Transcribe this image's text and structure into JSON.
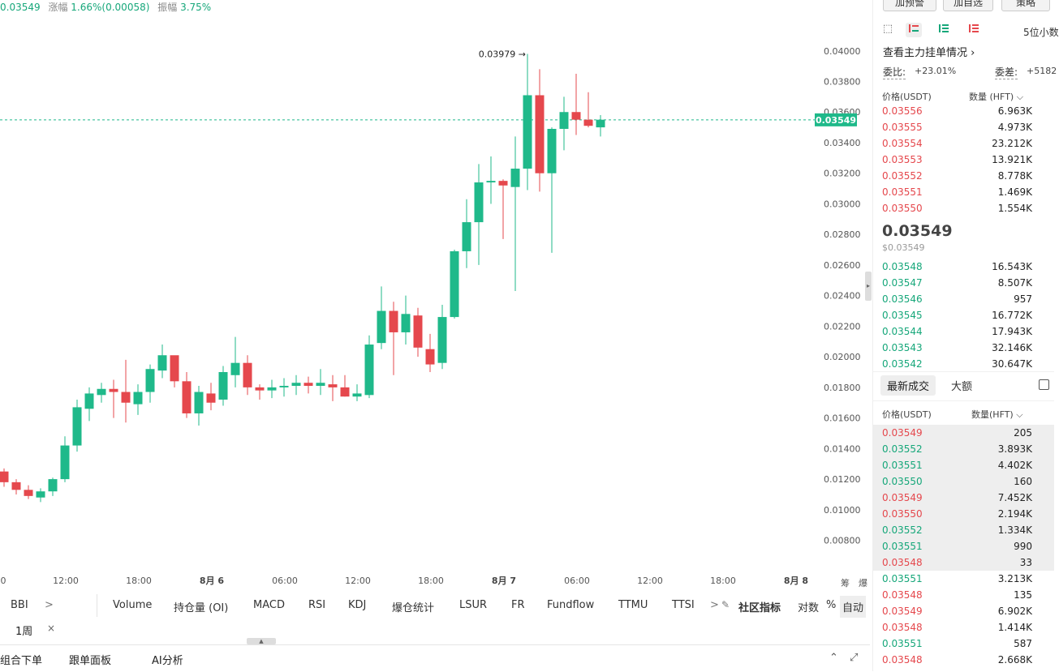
{
  "top_stats": {
    "price": "0.03549",
    "change_label": "涨幅",
    "change_value": "1.66%(0.00058)",
    "amplitude_label": "振幅",
    "amplitude_value": "3.75%"
  },
  "chart": {
    "y_ticks": [
      "0.04000",
      "0.03800",
      "0.03600",
      "0.03400",
      "0.03200",
      "0.03000",
      "0.02800",
      "0.02600",
      "0.02400",
      "0.02200",
      "0.02000",
      "0.01800",
      "0.01600",
      "0.01400",
      "0.01200",
      "0.01000",
      "0.00800"
    ],
    "x_ticks": [
      {
        "label": "0",
        "bold": false
      },
      {
        "label": "12:00",
        "bold": false
      },
      {
        "label": "18:00",
        "bold": false
      },
      {
        "label": "8月 6",
        "bold": true
      },
      {
        "label": "06:00",
        "bold": false
      },
      {
        "label": "12:00",
        "bold": false
      },
      {
        "label": "18:00",
        "bold": false
      },
      {
        "label": "8月 7",
        "bold": true
      },
      {
        "label": "06:00",
        "bold": false
      },
      {
        "label": "12:00",
        "bold": false
      },
      {
        "label": "18:00",
        "bold": false
      },
      {
        "label": "8月 8",
        "bold": true
      }
    ],
    "side_labels": [
      "筹",
      "爆"
    ],
    "current_price_label": "0.03549",
    "high_annotation": "0.03979 →",
    "colors": {
      "up": "#1fb98a",
      "down": "#e5484d",
      "grid": "#f2f2f2"
    }
  },
  "chart_data": {
    "type": "candlestick",
    "ylim": [
      0.0075,
      0.0411
    ],
    "current_price": 0.03549,
    "candles": [
      [
        0.0125,
        0.0127,
        0.0115,
        0.0118
      ],
      [
        0.0118,
        0.012,
        0.011,
        0.0113
      ],
      [
        0.0113,
        0.0116,
        0.0107,
        0.0109
      ],
      [
        0.0108,
        0.0114,
        0.0105,
        0.0112
      ],
      [
        0.0112,
        0.0121,
        0.0109,
        0.012
      ],
      [
        0.012,
        0.0148,
        0.0118,
        0.0142
      ],
      [
        0.0142,
        0.0172,
        0.0138,
        0.0167
      ],
      [
        0.0166,
        0.018,
        0.0158,
        0.0176
      ],
      [
        0.0175,
        0.0183,
        0.017,
        0.0179
      ],
      [
        0.0179,
        0.0185,
        0.016,
        0.0177
      ],
      [
        0.0177,
        0.0198,
        0.0157,
        0.017
      ],
      [
        0.0169,
        0.0182,
        0.0162,
        0.0177
      ],
      [
        0.0177,
        0.0195,
        0.017,
        0.0192
      ],
      [
        0.0191,
        0.0208,
        0.0186,
        0.0201
      ],
      [
        0.0201,
        0.0198,
        0.018,
        0.0184
      ],
      [
        0.0184,
        0.019,
        0.016,
        0.0163
      ],
      [
        0.0163,
        0.0181,
        0.0155,
        0.0177
      ],
      [
        0.0176,
        0.0183,
        0.0165,
        0.017
      ],
      [
        0.0172,
        0.0194,
        0.0168,
        0.019
      ],
      [
        0.0188,
        0.0213,
        0.018,
        0.0196
      ],
      [
        0.0196,
        0.0201,
        0.0175,
        0.018
      ],
      [
        0.018,
        0.0182,
        0.0172,
        0.0178
      ],
      [
        0.0178,
        0.0185,
        0.0173,
        0.018
      ],
      [
        0.018,
        0.0186,
        0.0174,
        0.0181
      ],
      [
        0.0181,
        0.0188,
        0.0175,
        0.0183
      ],
      [
        0.0183,
        0.0187,
        0.0176,
        0.0181
      ],
      [
        0.0181,
        0.0192,
        0.0175,
        0.0183
      ],
      [
        0.0182,
        0.0188,
        0.0171,
        0.018
      ],
      [
        0.018,
        0.0188,
        0.0174,
        0.0174
      ],
      [
        0.0174,
        0.0182,
        0.0171,
        0.0176
      ],
      [
        0.0175,
        0.0214,
        0.0173,
        0.0208
      ],
      [
        0.0209,
        0.0246,
        0.0205,
        0.023
      ],
      [
        0.023,
        0.0236,
        0.0188,
        0.0216
      ],
      [
        0.0216,
        0.024,
        0.0208,
        0.0228
      ],
      [
        0.0227,
        0.0232,
        0.02,
        0.0206
      ],
      [
        0.0205,
        0.0215,
        0.019,
        0.0195
      ],
      [
        0.0196,
        0.0234,
        0.0192,
        0.0226
      ],
      [
        0.0226,
        0.027,
        0.0225,
        0.0269
      ],
      [
        0.0269,
        0.0303,
        0.0258,
        0.0288
      ],
      [
        0.0288,
        0.0326,
        0.026,
        0.0314
      ],
      [
        0.0314,
        0.0331,
        0.03,
        0.0315
      ],
      [
        0.0315,
        0.0316,
        0.0277,
        0.0312
      ],
      [
        0.0311,
        0.0344,
        0.0243,
        0.0323
      ],
      [
        0.0323,
        0.0398,
        0.0309,
        0.0371
      ],
      [
        0.0371,
        0.0388,
        0.0308,
        0.032
      ],
      [
        0.032,
        0.035,
        0.0268,
        0.0349
      ],
      [
        0.0349,
        0.037,
        0.0335,
        0.036
      ],
      [
        0.036,
        0.0385,
        0.0345,
        0.0355
      ],
      [
        0.0355,
        0.0373,
        0.035,
        0.0351
      ],
      [
        0.035,
        0.0358,
        0.0344,
        0.0355
      ]
    ]
  },
  "indicator_bar": {
    "items": [
      "BBI",
      ">",
      "Volume",
      "持仓量 (OI)",
      "MACD",
      "RSI",
      "KDJ",
      "爆仓统计",
      "LSUR",
      "FR",
      "Fundflow",
      "TTMU",
      "TTSI",
      ">"
    ],
    "edit_icon": "✎",
    "community": "社区指标",
    "log": "对数",
    "percent": "%",
    "auto": "自动"
  },
  "interval_row": {
    "label": "1周",
    "close": "×"
  },
  "bottom_bar": {
    "items": [
      "组合下单",
      "跟单面板",
      "AI分析"
    ],
    "collapse": "⌃",
    "expand": "⤢"
  },
  "right_panel": {
    "top_buttons": [
      "加预警",
      "加自选",
      "策略"
    ],
    "decimals": "5位小数",
    "main_orders_link": "查看主力挂单情况 ›",
    "ratio_label": "委比:",
    "ratio_value": "+23.01%",
    "diff_label": "委差:",
    "diff_value": "+5182",
    "book_headers": {
      "price": "价格(USDT)",
      "qty": "数量 (HFT)"
    },
    "asks": [
      {
        "price": "0.03556",
        "qty": "6.963K"
      },
      {
        "price": "0.03555",
        "qty": "4.973K"
      },
      {
        "price": "0.03554",
        "qty": "23.212K"
      },
      {
        "price": "0.03553",
        "qty": "13.921K"
      },
      {
        "price": "0.03552",
        "qty": "8.778K"
      },
      {
        "price": "0.03551",
        "qty": "1.469K"
      },
      {
        "price": "0.03550",
        "qty": "1.554K"
      }
    ],
    "mid_price": "0.03549",
    "mid_usd": "$0.03549",
    "bids": [
      {
        "price": "0.03548",
        "qty": "16.543K"
      },
      {
        "price": "0.03547",
        "qty": "8.507K"
      },
      {
        "price": "0.03546",
        "qty": "957"
      },
      {
        "price": "0.03545",
        "qty": "16.772K"
      },
      {
        "price": "0.03544",
        "qty": "17.943K"
      },
      {
        "price": "0.03543",
        "qty": "32.146K"
      },
      {
        "price": "0.03542",
        "qty": "30.647K"
      }
    ],
    "trades_tab_active": "最新成交",
    "trades_tab_other": "大额",
    "trade_headers": {
      "price": "价格(USDT)",
      "qty": "数量(HFT)"
    },
    "trades": [
      {
        "price": "0.03549",
        "qty": "205",
        "side": "sell",
        "hl": true
      },
      {
        "price": "0.03552",
        "qty": "3.893K",
        "side": "buy",
        "hl": true
      },
      {
        "price": "0.03551",
        "qty": "4.402K",
        "side": "buy",
        "hl": true
      },
      {
        "price": "0.03550",
        "qty": "160",
        "side": "buy",
        "hl": true
      },
      {
        "price": "0.03549",
        "qty": "7.452K",
        "side": "sell",
        "hl": true
      },
      {
        "price": "0.03550",
        "qty": "2.194K",
        "side": "sell",
        "hl": true
      },
      {
        "price": "0.03552",
        "qty": "1.334K",
        "side": "buy",
        "hl": true
      },
      {
        "price": "0.03551",
        "qty": "990",
        "side": "buy",
        "hl": true
      },
      {
        "price": "0.03548",
        "qty": "33",
        "side": "sell",
        "hl": true
      },
      {
        "price": "0.03551",
        "qty": "3.213K",
        "side": "buy",
        "hl": false
      },
      {
        "price": "0.03548",
        "qty": "135",
        "side": "sell",
        "hl": false
      },
      {
        "price": "0.03549",
        "qty": "6.902K",
        "side": "sell",
        "hl": false
      },
      {
        "price": "0.03548",
        "qty": "1.414K",
        "side": "sell",
        "hl": false
      },
      {
        "price": "0.03551",
        "qty": "587",
        "side": "buy",
        "hl": false
      },
      {
        "price": "0.03548",
        "qty": "2.668K",
        "side": "sell",
        "hl": false
      }
    ]
  }
}
